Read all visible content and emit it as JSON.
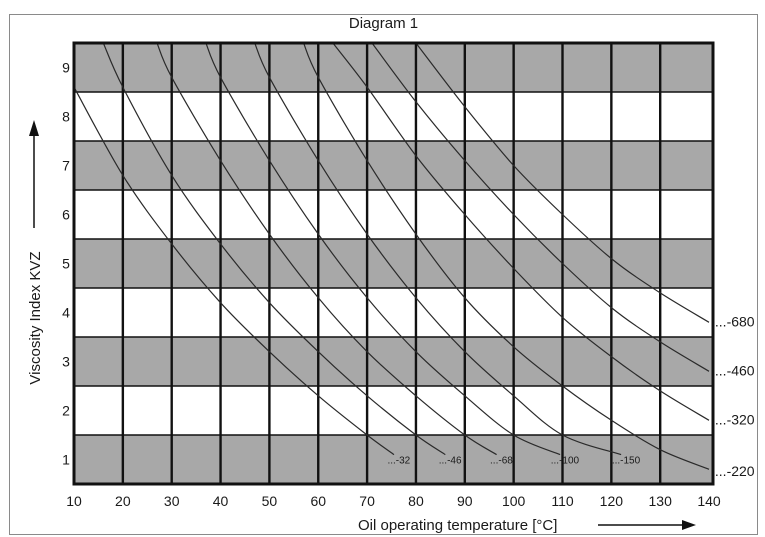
{
  "chart_data": {
    "type": "line",
    "title": "Diagram 1",
    "xlabel": "Oil operating temperature [°C]",
    "ylabel": "Viscosity Index KVZ",
    "xlim": [
      10,
      140
    ],
    "ylim": [
      0.5,
      9.5
    ],
    "x_ticks": [
      10,
      20,
      30,
      40,
      50,
      60,
      70,
      80,
      90,
      100,
      110,
      120,
      130,
      140
    ],
    "x_tick_labels": [
      "10",
      "20",
      "30",
      "40",
      "50",
      "60",
      "70",
      "80",
      "90",
      "100",
      "110",
      "120",
      "130",
      "140"
    ],
    "y_ticks": [
      1,
      2,
      3,
      4,
      5,
      6,
      7,
      8,
      9
    ],
    "y_tick_labels": [
      "1",
      "2",
      "3",
      "4",
      "5",
      "6",
      "7",
      "8",
      "9"
    ],
    "grid": true,
    "band_color": "#a8a8a8",
    "line_color": "#2a2a2a",
    "series": [
      {
        "name": "...-32",
        "label_pos": [
          76.5,
          1.0
        ],
        "x": [
          10,
          20,
          30,
          40,
          50,
          60,
          70,
          75.5
        ],
        "y": [
          8.6,
          6.8,
          5.4,
          4.2,
          3.2,
          2.3,
          1.5,
          1.1
        ]
      },
      {
        "name": "...-46",
        "label_pos": [
          87.0,
          1.0
        ],
        "x": [
          16,
          20,
          30,
          40,
          50,
          60,
          70,
          80,
          86
        ],
        "y": [
          9.5,
          8.6,
          6.8,
          5.4,
          4.2,
          3.2,
          2.3,
          1.5,
          1.1
        ]
      },
      {
        "name": "...-68",
        "label_pos": [
          97.5,
          1.0
        ],
        "x": [
          27,
          30,
          40,
          50,
          60,
          70,
          80,
          90,
          96.5
        ],
        "y": [
          9.5,
          8.8,
          7.1,
          5.6,
          4.3,
          3.2,
          2.3,
          1.5,
          1.1
        ]
      },
      {
        "name": "...-100",
        "label_pos": [
          110.5,
          1.0
        ],
        "x": [
          37,
          40,
          50,
          60,
          70,
          80,
          90,
          100,
          109.5
        ],
        "y": [
          9.5,
          8.8,
          7.1,
          5.6,
          4.3,
          3.2,
          2.3,
          1.5,
          1.1
        ]
      },
      {
        "name": "...-150",
        "label_pos": [
          123.0,
          1.0
        ],
        "x": [
          47,
          50,
          60,
          70,
          80,
          90,
          100,
          110,
          122
        ],
        "y": [
          9.5,
          8.8,
          7.1,
          5.6,
          4.3,
          3.2,
          2.3,
          1.5,
          1.1
        ]
      },
      {
        "name": "...-220",
        "label_pos": [
          141.2,
          0.75
        ],
        "x": [
          57,
          60,
          70,
          80,
          90,
          100,
          110,
          120,
          130,
          140
        ],
        "y": [
          9.5,
          8.8,
          7.1,
          5.6,
          4.3,
          3.3,
          2.5,
          1.8,
          1.2,
          0.8
        ]
      },
      {
        "name": "...-320",
        "label_pos": [
          141.2,
          1.8
        ],
        "x": [
          63,
          70,
          80,
          90,
          100,
          110,
          120,
          130,
          140
        ],
        "y": [
          9.5,
          8.6,
          7.2,
          6.0,
          4.9,
          3.9,
          3.1,
          2.4,
          1.8
        ]
      },
      {
        "name": "...-460",
        "label_pos": [
          141.2,
          2.8
        ],
        "x": [
          71,
          80,
          90,
          100,
          110,
          120,
          130,
          140
        ],
        "y": [
          9.5,
          8.3,
          7.1,
          6.0,
          5.0,
          4.1,
          3.4,
          2.8
        ]
      },
      {
        "name": "...-680",
        "label_pos": [
          141.2,
          3.8
        ],
        "x": [
          80,
          90,
          100,
          110,
          120,
          130,
          140
        ],
        "y": [
          9.5,
          8.2,
          7.0,
          6.0,
          5.1,
          4.4,
          3.8
        ]
      }
    ]
  }
}
